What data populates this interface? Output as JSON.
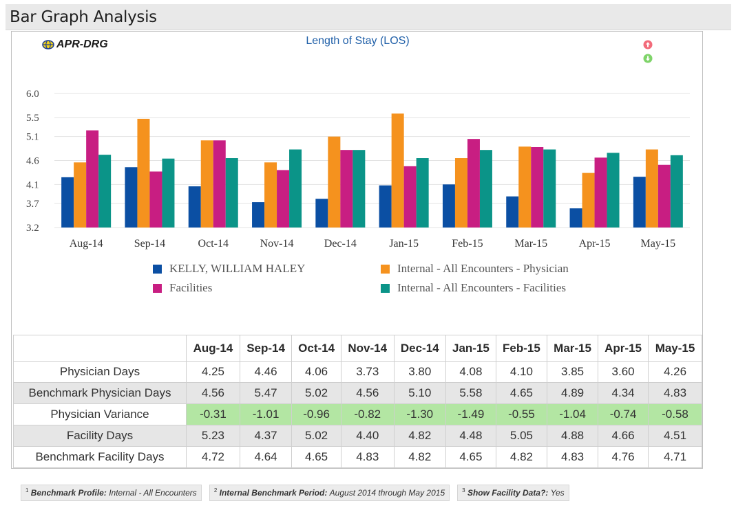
{
  "page": {
    "title": "Bar Graph Analysis"
  },
  "brand": {
    "name": "APR-DRG"
  },
  "chart_title": "Length of Stay (LOS)",
  "colors": {
    "physician": "#0b4fa3",
    "benchmark_physician": "#f5921e",
    "facility": "#c81e82",
    "benchmark_facility": "#0b9488",
    "variance_highlight": "#b3e6a3",
    "sort_up": "#f26b7a",
    "sort_down": "#7fd46a"
  },
  "icons": {
    "brand": "globe-icon",
    "sort_up": "arrow-up-circle-icon",
    "sort_down": "arrow-down-circle-icon"
  },
  "chart_data": {
    "type": "bar",
    "categories": [
      "Aug-14",
      "Sep-14",
      "Oct-14",
      "Nov-14",
      "Dec-14",
      "Jan-15",
      "Feb-15",
      "Mar-15",
      "Apr-15",
      "May-15"
    ],
    "y_ticks": [
      "6.0",
      "5.5",
      "5.1",
      "4.6",
      "4.1",
      "3.7",
      "3.2"
    ],
    "ylim": [
      3.2,
      6.0
    ],
    "grid": true,
    "legend_position": "bottom",
    "series": [
      {
        "name": "KELLY, WILLIAM HALEY",
        "color": "#0b4fa3",
        "values": [
          4.25,
          4.46,
          4.06,
          3.73,
          3.8,
          4.08,
          4.1,
          3.85,
          3.6,
          4.26
        ]
      },
      {
        "name": "Internal - All Encounters - Physician",
        "color": "#f5921e",
        "values": [
          4.56,
          5.47,
          5.02,
          4.56,
          5.1,
          5.58,
          4.65,
          4.89,
          4.34,
          4.83
        ]
      },
      {
        "name": "Facilities",
        "color": "#c81e82",
        "values": [
          5.23,
          4.37,
          5.02,
          4.4,
          4.82,
          4.48,
          5.05,
          4.88,
          4.66,
          4.51
        ]
      },
      {
        "name": "Internal - All Encounters - Facilities",
        "color": "#0b9488",
        "values": [
          4.72,
          4.64,
          4.65,
          4.83,
          4.82,
          4.65,
          4.82,
          4.83,
          4.76,
          4.71
        ]
      }
    ]
  },
  "table": {
    "columns": [
      "Aug-14",
      "Sep-14",
      "Oct-14",
      "Nov-14",
      "Dec-14",
      "Jan-15",
      "Feb-15",
      "Mar-15",
      "Apr-15",
      "May-15"
    ],
    "rows": [
      {
        "label": "Physician Days",
        "values": [
          "4.25",
          "4.46",
          "4.06",
          "3.73",
          "3.80",
          "4.08",
          "4.10",
          "3.85",
          "3.60",
          "4.26"
        ]
      },
      {
        "label": "Benchmark Physician Days",
        "values": [
          "4.56",
          "5.47",
          "5.02",
          "4.56",
          "5.10",
          "5.58",
          "4.65",
          "4.89",
          "4.34",
          "4.83"
        ]
      },
      {
        "label": "Physician Variance",
        "values": [
          "-0.31",
          "-1.01",
          "-0.96",
          "-0.82",
          "-1.30",
          "-1.49",
          "-0.55",
          "-1.04",
          "-0.74",
          "-0.58"
        ]
      },
      {
        "label": "Facility Days",
        "values": [
          "5.23",
          "4.37",
          "5.02",
          "4.40",
          "4.82",
          "4.48",
          "5.05",
          "4.88",
          "4.66",
          "4.51"
        ]
      },
      {
        "label": "Benchmark Facility Days",
        "values": [
          "4.72",
          "4.64",
          "4.65",
          "4.83",
          "4.82",
          "4.65",
          "4.82",
          "4.83",
          "4.76",
          "4.71"
        ]
      }
    ]
  },
  "footnotes": [
    {
      "num": "1",
      "label": "Benchmark Profile:",
      "value": "Internal - All Encounters"
    },
    {
      "num": "2",
      "label": "Internal Benchmark Period:",
      "value": "August 2014 through May 2015"
    },
    {
      "num": "3",
      "label": "Show Facility Data?:",
      "value": "Yes"
    }
  ]
}
